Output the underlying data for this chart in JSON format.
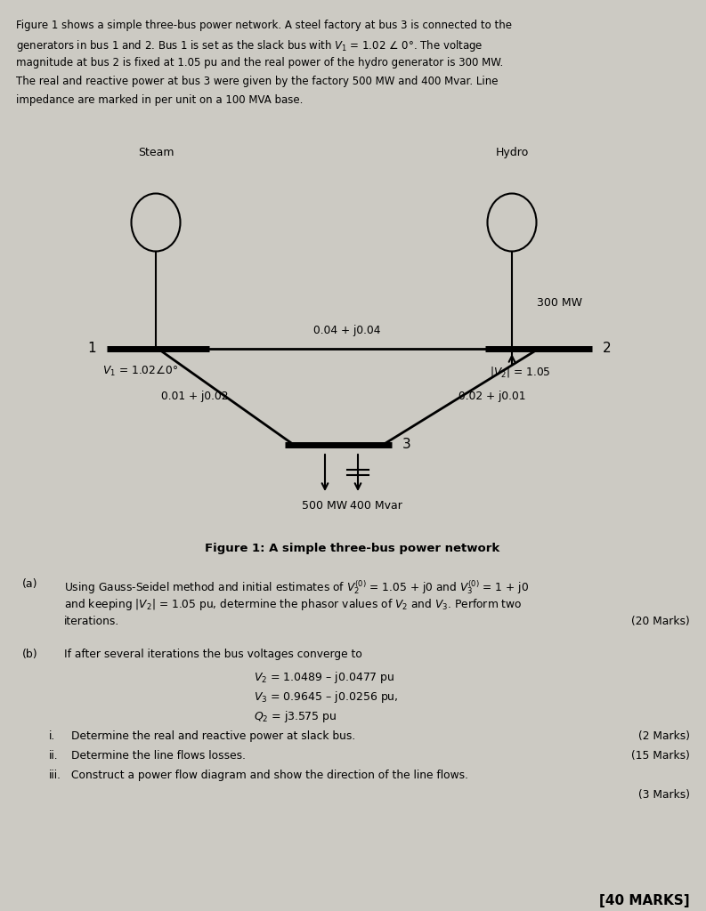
{
  "bg_color": "#cccac3",
  "fig_width": 7.93,
  "fig_height": 10.24,
  "dpi": 100,
  "intro_lines": [
    "Figure 1 shows a simple three-bus power network. A steel factory at bus 3 is connected to the",
    "generators in bus 1 and 2. Bus 1 is set as the slack bus with $V_1$ = 1.02 ∠ 0°. The voltage",
    "magnitude at bus 2 is fixed at 1.05 pu and the real power of the hydro generator is 300 MW.",
    "The real and reactive power at bus 3 were given by the factory 500 MW and 400 Mvar. Line",
    "impedance are marked in per unit on a 100 MVA base."
  ],
  "steam_label": "Steam",
  "hydro_label": "Hydro",
  "bus1_label": "1",
  "bus2_label": "2",
  "bus3_label": "3",
  "v1_label": "$V_1$ = 1.02∠0°",
  "v2_label": "$|V_2|$ = 1.05",
  "z12_label": "0.04 + j0.04",
  "z13_label": "0.01 + j0.02",
  "z23_label": "0.02 + j0.01",
  "mw300_label": "300 MW",
  "mw500_label": "500 MW",
  "mvar400_label": "400 Mvar",
  "fig_caption": "Figure 1: A simple three-bus power network",
  "part_a_label": "(a)",
  "part_a_lines": [
    "Using Gauss-Seidel method and initial estimates of $V_2^{(0)}$ = 1.05 + j0 and $V_3^{(0)}$ = 1 + j0",
    "and keeping $|V_2|$ = 1.05 pu, determine the phasor values of $V_2$ and $V_3$. Perform two",
    "iterations."
  ],
  "part_a_marks": "(20 Marks)",
  "part_b_label": "(b)",
  "part_b_intro": "If after several iterations the bus voltages converge to",
  "v2_conv": "$V_2$ = 1.0489 – j0.0477 pu",
  "v3_conv": "$V_3$ = 0.9645 – j0.0256 pu,",
  "q2_conv": "$Q_2$ = j3.575 pu",
  "sub_i_label": "i.",
  "sub_i_text": "Determine the real and reactive power at slack bus.",
  "sub_i_marks": "(2 Marks)",
  "sub_ii_label": "ii.",
  "sub_ii_text": "Determine the line flows losses.",
  "sub_ii_marks": "(15 Marks)",
  "sub_iii_label": "iii.",
  "sub_iii_text": "Construct a power flow diagram and show the direction of the line flows.",
  "sub_iii_marks": "(3 Marks)",
  "total_marks": "[40 MARKS]"
}
